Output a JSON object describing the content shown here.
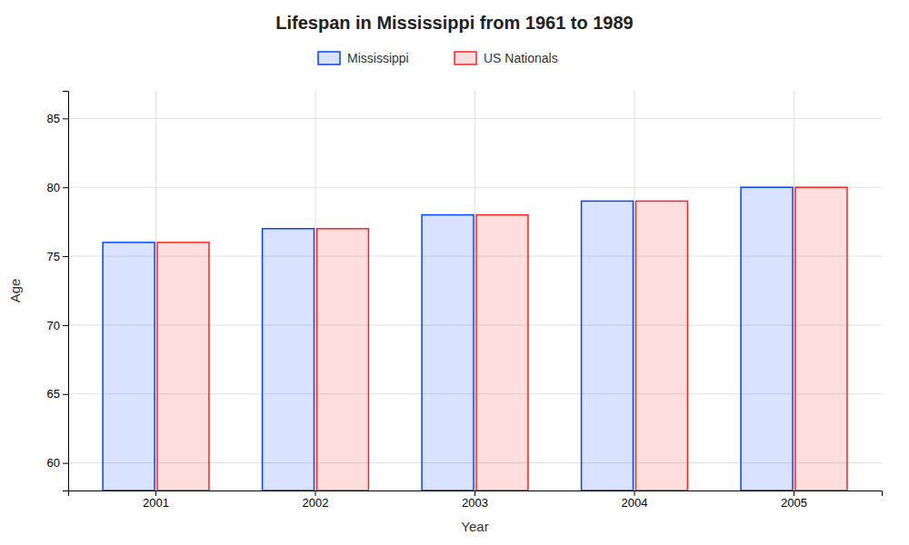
{
  "chart_data": {
    "type": "bar",
    "title": "Lifespan in Mississippi from 1961 to 1989",
    "x_label": "Year",
    "y_label": "Age",
    "categories": [
      "2001",
      "2002",
      "2003",
      "2004",
      "2005"
    ],
    "series": [
      {
        "name": "Mississippi",
        "color": "#0044ff",
        "values": [
          76,
          77,
          78,
          79,
          80
        ]
      },
      {
        "name": "US Nationals",
        "color": "#ff2222",
        "values": [
          76,
          77,
          78,
          79,
          80
        ]
      }
    ],
    "ylim": [
      58,
      87
    ],
    "yticks": [
      60,
      65,
      70,
      75,
      80,
      85
    ],
    "grid": true,
    "legend": "top"
  }
}
